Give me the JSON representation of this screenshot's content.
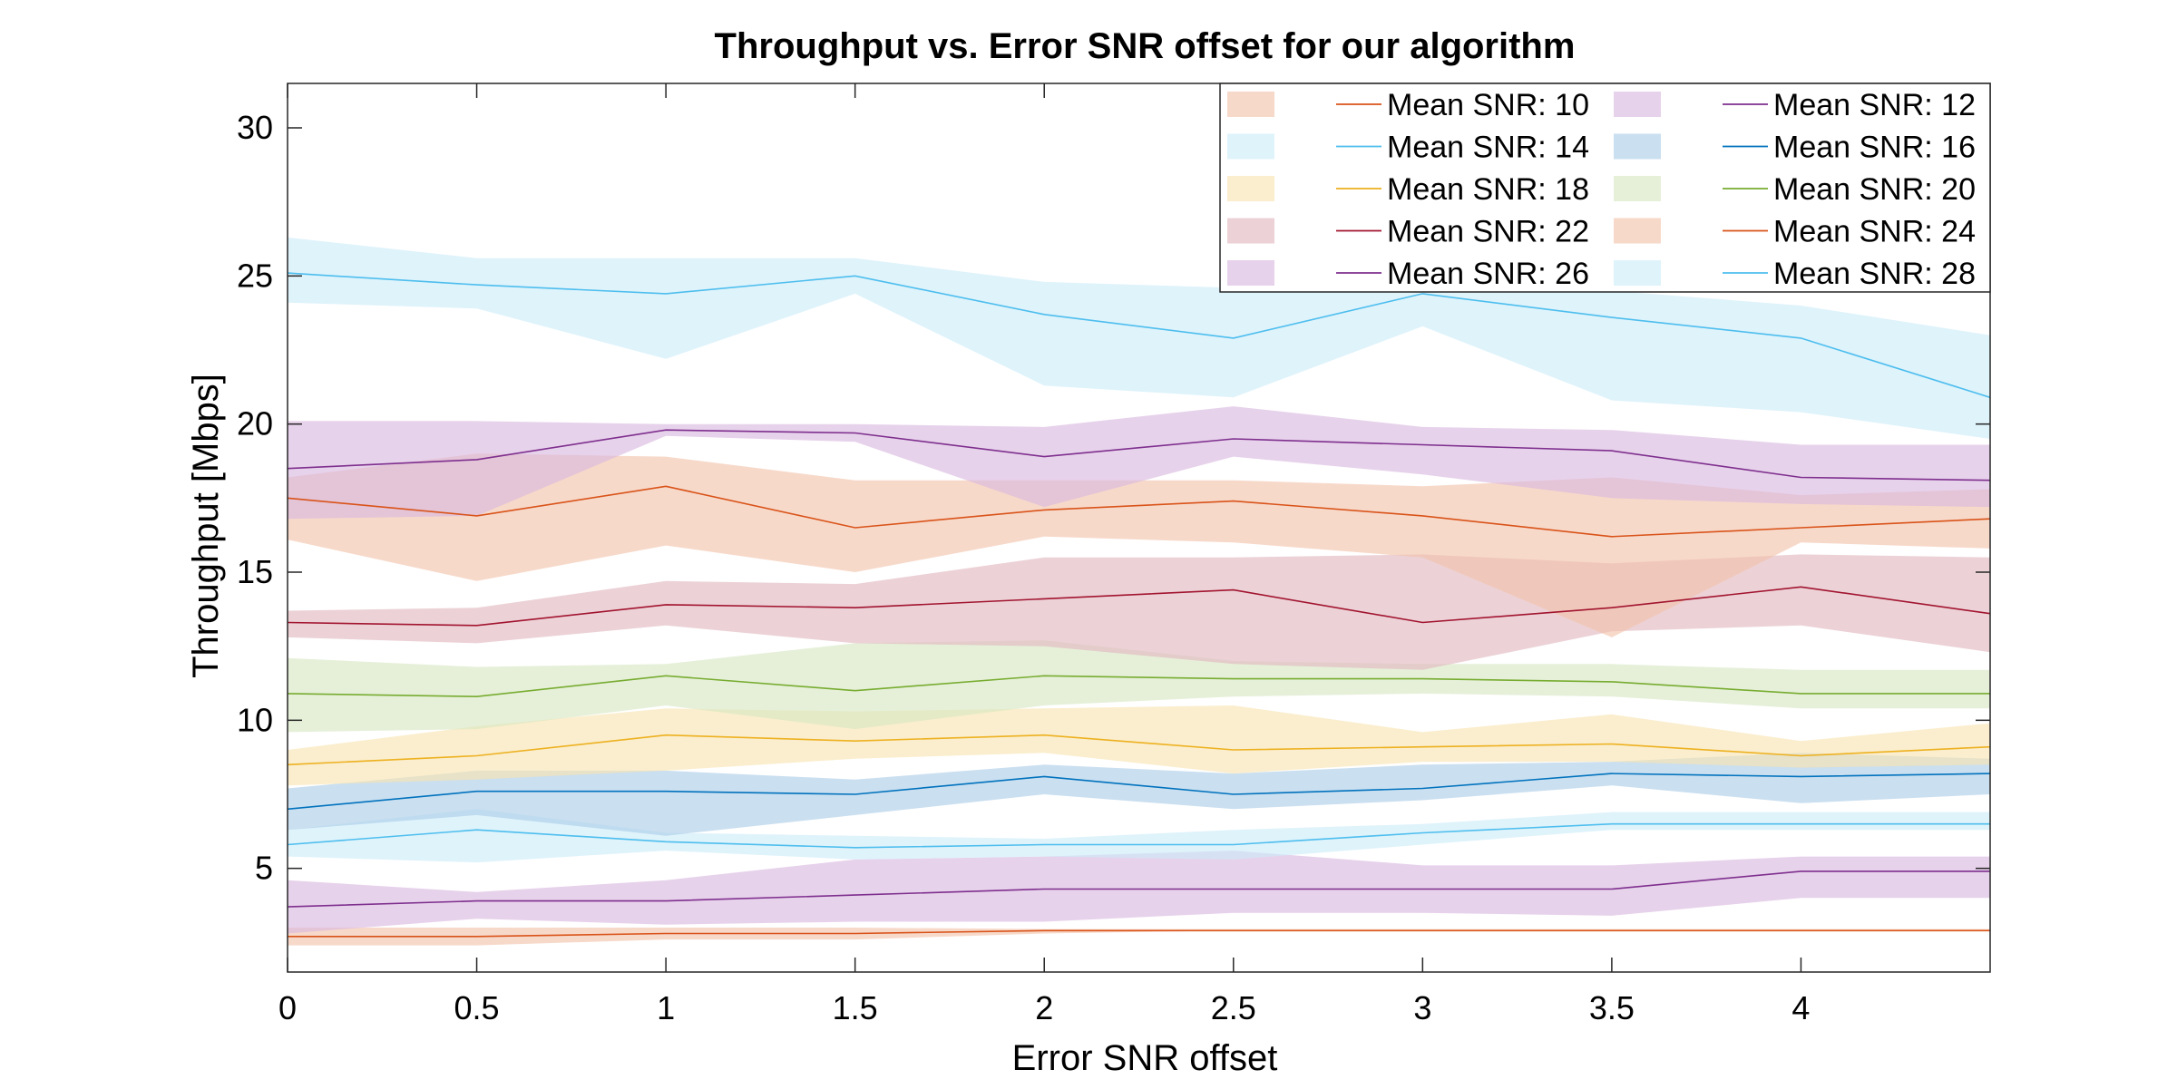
{
  "chart_data": {
    "type": "line",
    "title": "Throughput vs. Error SNR offset for our algorithm",
    "xlabel": "Error SNR offset",
    "ylabel": "Throughput [Mbps]",
    "xlim": [
      0,
      4.5
    ],
    "ylim": [
      1.5,
      31.5
    ],
    "x": [
      0,
      0.5,
      1,
      1.5,
      2,
      2.5,
      3,
      3.5,
      4,
      4.5
    ],
    "x_ticks": [
      0,
      0.5,
      1,
      1.5,
      2,
      2.5,
      3,
      3.5,
      4
    ],
    "x_tick_labels": [
      "0",
      "0.5",
      "1",
      "1.5",
      "2",
      "2.5",
      "3",
      "3.5",
      "4"
    ],
    "y_ticks": [
      5,
      10,
      15,
      20,
      25,
      30
    ],
    "y_tick_labels": [
      "5",
      "10",
      "15",
      "20",
      "25",
      "30"
    ],
    "grid": false,
    "legend_position": "top-right",
    "series": [
      {
        "name": "Mean SNR: 10",
        "color": "#D95319",
        "band_color": "#F2C2A9",
        "values": [
          2.7,
          2.7,
          2.8,
          2.8,
          2.9,
          2.9,
          2.9,
          2.9,
          2.9,
          2.9
        ],
        "lower": [
          2.4,
          2.4,
          2.6,
          2.6,
          2.8,
          2.9,
          2.9,
          2.9,
          2.9,
          2.9
        ],
        "upper": [
          3.0,
          3.0,
          3.0,
          3.0,
          2.95,
          2.95,
          2.95,
          2.95,
          2.95,
          2.95
        ]
      },
      {
        "name": "Mean SNR: 12",
        "color": "#7E2F8E",
        "band_color": "#D8B7DF",
        "values": [
          3.7,
          3.9,
          3.9,
          4.1,
          4.3,
          4.3,
          4.3,
          4.3,
          4.9,
          4.9
        ],
        "lower": [
          2.8,
          3.3,
          3.1,
          3.2,
          3.2,
          3.5,
          3.5,
          3.4,
          4.0,
          4.0
        ],
        "upper": [
          4.6,
          4.2,
          4.6,
          5.3,
          5.4,
          5.6,
          5.1,
          5.1,
          5.4,
          5.4
        ]
      },
      {
        "name": "Mean SNR: 14",
        "color": "#4DBEEE",
        "band_color": "#CBEBF9",
        "values": [
          5.8,
          6.3,
          5.9,
          5.7,
          5.8,
          5.8,
          6.2,
          6.5,
          6.5,
          6.5
        ],
        "lower": [
          5.4,
          5.2,
          5.6,
          5.3,
          5.4,
          5.3,
          5.8,
          6.3,
          6.3,
          6.3
        ],
        "upper": [
          6.3,
          7.0,
          6.2,
          6.1,
          6.0,
          6.3,
          6.5,
          6.9,
          6.9,
          6.9
        ]
      },
      {
        "name": "Mean SNR: 16",
        "color": "#0072BD",
        "band_color": "#A9CCE6",
        "values": [
          7.0,
          7.6,
          7.6,
          7.5,
          8.1,
          7.5,
          7.7,
          8.2,
          8.1,
          8.2
        ],
        "lower": [
          6.3,
          6.8,
          6.1,
          6.8,
          7.5,
          7.0,
          7.3,
          7.8,
          7.2,
          7.5
        ],
        "upper": [
          7.7,
          8.3,
          8.3,
          8.0,
          8.5,
          8.2,
          8.5,
          8.6,
          8.9,
          8.7
        ]
      },
      {
        "name": "Mean SNR: 18",
        "color": "#EDB120",
        "band_color": "#F8E3B0",
        "values": [
          8.5,
          8.8,
          9.5,
          9.3,
          9.5,
          9.0,
          9.1,
          9.2,
          8.8,
          9.1
        ],
        "lower": [
          7.8,
          8.0,
          8.3,
          8.7,
          8.9,
          8.2,
          8.6,
          8.6,
          8.4,
          8.5
        ],
        "upper": [
          9.0,
          9.8,
          10.4,
          10.3,
          10.4,
          10.5,
          9.6,
          10.2,
          9.3,
          9.9
        ]
      },
      {
        "name": "Mean SNR: 20",
        "color": "#77AC30",
        "band_color": "#D6E6C1",
        "values": [
          10.9,
          10.8,
          11.5,
          11.0,
          11.5,
          11.4,
          11.4,
          11.3,
          10.9,
          10.9
        ],
        "lower": [
          9.6,
          9.7,
          10.5,
          9.7,
          10.5,
          10.8,
          10.9,
          10.8,
          10.4,
          10.4
        ],
        "upper": [
          12.1,
          11.8,
          11.9,
          12.6,
          12.7,
          12.0,
          11.9,
          11.9,
          11.7,
          11.7
        ]
      },
      {
        "name": "Mean SNR: 22",
        "color": "#A2142F",
        "band_color": "#E0B6BE",
        "values": [
          13.3,
          13.2,
          13.9,
          13.8,
          14.1,
          14.4,
          13.3,
          13.8,
          14.5,
          13.6
        ],
        "lower": [
          12.8,
          12.6,
          13.2,
          12.6,
          12.5,
          11.9,
          11.7,
          13.0,
          13.2,
          12.3
        ],
        "upper": [
          13.7,
          13.8,
          14.7,
          14.6,
          15.5,
          15.5,
          15.6,
          15.3,
          15.6,
          15.5
        ]
      },
      {
        "name": "Mean SNR: 24",
        "color": "#D95319",
        "band_color": "#F2C2A9",
        "values": [
          17.5,
          16.9,
          17.9,
          16.5,
          17.1,
          17.4,
          16.9,
          16.2,
          16.5,
          16.8
        ],
        "lower": [
          16.1,
          14.7,
          15.9,
          15.0,
          16.2,
          16.0,
          15.5,
          12.8,
          16.0,
          15.8
        ],
        "upper": [
          18.2,
          19.0,
          18.9,
          18.1,
          18.1,
          18.1,
          17.9,
          18.2,
          17.6,
          17.8
        ]
      },
      {
        "name": "Mean SNR: 26",
        "color": "#7E2F8E",
        "band_color": "#D8B7DF",
        "values": [
          18.5,
          18.8,
          19.8,
          19.7,
          18.9,
          19.5,
          19.3,
          19.1,
          18.2,
          18.1
        ],
        "lower": [
          16.8,
          16.9,
          19.6,
          19.4,
          17.2,
          18.9,
          18.3,
          17.5,
          17.3,
          17.2
        ],
        "upper": [
          20.1,
          20.1,
          20.0,
          20.0,
          19.9,
          20.6,
          19.9,
          19.8,
          19.3,
          19.3
        ]
      },
      {
        "name": "Mean SNR: 28",
        "color": "#4DBEEE",
        "band_color": "#CBEBF9",
        "values": [
          25.1,
          24.7,
          24.4,
          25.0,
          23.7,
          22.9,
          24.4,
          23.6,
          22.9,
          20.9
        ],
        "lower": [
          24.1,
          23.9,
          22.2,
          24.4,
          21.3,
          20.9,
          23.3,
          20.8,
          20.4,
          19.5
        ],
        "upper": [
          26.3,
          25.6,
          25.6,
          25.6,
          24.8,
          24.6,
          24.9,
          24.5,
          24.0,
          23.0
        ]
      }
    ]
  }
}
